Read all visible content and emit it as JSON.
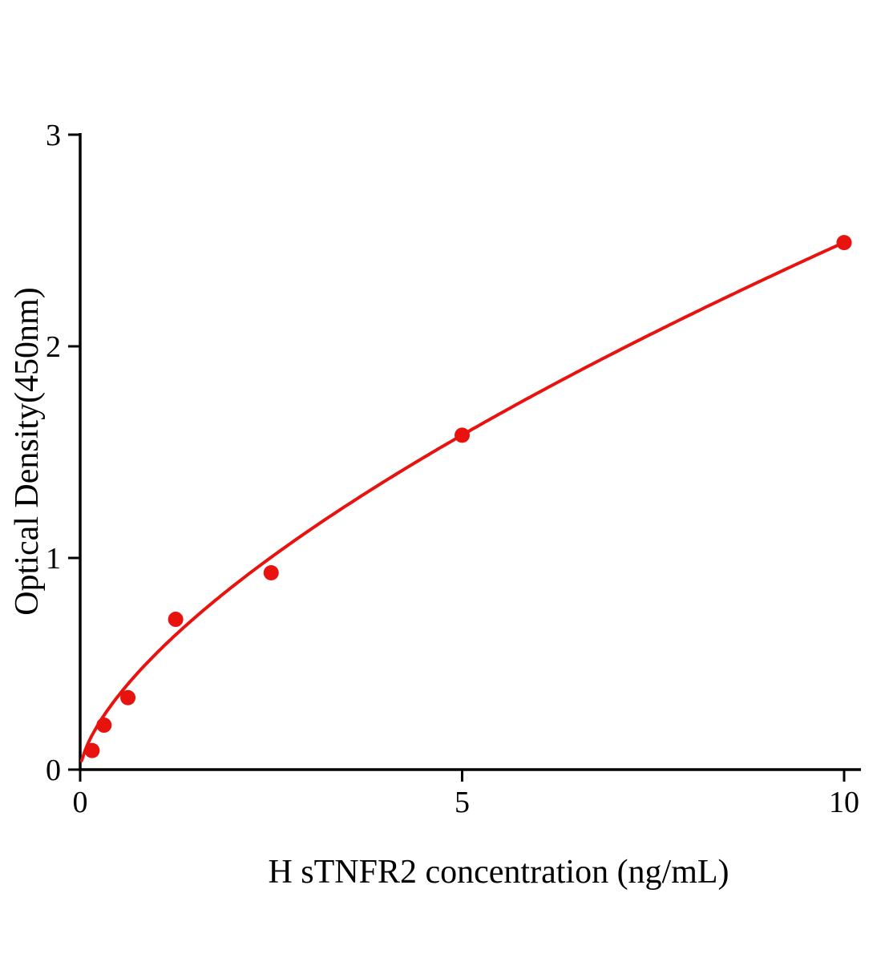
{
  "chart_data": {
    "type": "scatter",
    "title": "",
    "xlabel": "H sTNFR2 concentration (ng/mL)",
    "ylabel": "Optical Density(450nm)",
    "x": [
      0.156,
      0.3125,
      0.625,
      1.25,
      2.5,
      5,
      10
    ],
    "y": [
      0.09,
      0.21,
      0.34,
      0.71,
      0.93,
      1.58,
      2.49
    ],
    "x_ticks": [
      0,
      5,
      10
    ],
    "y_ticks": [
      0,
      1,
      2,
      3
    ],
    "xlim": [
      0,
      10.2
    ],
    "ylim": [
      0,
      3
    ],
    "grid": false,
    "legend": "none",
    "marker_color": "#e8120f",
    "line_color": "#e8120f",
    "axis_color": "#000000",
    "fit_curve": {
      "type": "power",
      "a": 0.55,
      "b": 0.656
    }
  }
}
